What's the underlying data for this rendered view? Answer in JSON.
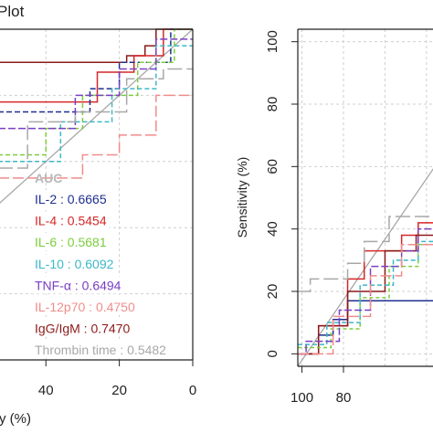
{
  "chart_data": [
    {
      "type": "line",
      "title": "Plot",
      "xlabel": "y (%)",
      "ylabel": "",
      "xlim": [
        0,
        53
      ],
      "x_reversed": true,
      "ylim": [
        0,
        100
      ],
      "xticks": [
        40,
        20,
        0
      ],
      "legend_title": "AUC",
      "legend_entries": [
        {
          "name": "IL-2",
          "auc": "0.6665",
          "color": "#1f2f8f"
        },
        {
          "name": "IL-4",
          "auc": "0.5454",
          "color": "#d62728"
        },
        {
          "name": "IL-6",
          "auc": "0.5681",
          "color": "#7ccd3c"
        },
        {
          "name": "IL-10",
          "auc": "0.6092",
          "color": "#3cb8c8"
        },
        {
          "name": "TNF-α",
          "auc": "0.6494",
          "color": "#7a3fc4"
        },
        {
          "name": "IL-12p70",
          "auc": "0.4750",
          "color": "#f08c8c"
        },
        {
          "name": "IgG/IgM",
          "auc": "0.7470",
          "color": "#8b1a1a"
        },
        {
          "name": "Thrombin time",
          "auc": "0.5482",
          "color": "#a8a8a8"
        }
      ],
      "grid": true,
      "legend_position": "bottom-left",
      "series": [
        {
          "name": "IgG/IgM",
          "color": "#8b1a1a",
          "dash": "",
          "x": [
            53,
            18,
            18,
            13,
            13,
            10,
            10,
            5,
            5,
            0
          ],
          "y": [
            90,
            90,
            92,
            92,
            95,
            95,
            100,
            100,
            100,
            100
          ]
        },
        {
          "name": "IL-4",
          "color": "#d62728",
          "dash": "",
          "x": [
            53,
            26,
            26,
            16,
            16,
            8,
            8,
            0
          ],
          "y": [
            78,
            78,
            87,
            87,
            92,
            92,
            100,
            100
          ]
        },
        {
          "name": "IL-2",
          "color": "#1f2f8f",
          "dash": "6,3",
          "x": [
            53,
            28,
            28,
            20,
            20,
            6,
            6,
            0
          ],
          "y": [
            75,
            75,
            82,
            82,
            90,
            90,
            100,
            100
          ]
        },
        {
          "name": "IL-6",
          "color": "#7ccd3c",
          "dash": "5,3",
          "x": [
            53,
            40,
            40,
            30,
            30,
            15,
            15,
            5,
            5,
            0
          ],
          "y": [
            62,
            62,
            70,
            70,
            80,
            80,
            90,
            90,
            100,
            100
          ]
        },
        {
          "name": "IL-10",
          "color": "#3cb8c8",
          "dash": "5,3",
          "x": [
            53,
            36,
            36,
            22,
            22,
            10,
            10,
            0
          ],
          "y": [
            60,
            60,
            72,
            72,
            82,
            82,
            95,
            95
          ]
        },
        {
          "name": "TNF-α",
          "color": "#7a3fc4",
          "dash": "8,3",
          "x": [
            53,
            32,
            32,
            20,
            20,
            10,
            10,
            0
          ],
          "y": [
            70,
            70,
            80,
            80,
            88,
            88,
            97,
            97
          ]
        },
        {
          "name": "IL-12p70",
          "color": "#f08c8c",
          "dash": "12,4",
          "x": [
            53,
            30,
            30,
            20,
            20,
            10,
            10,
            0
          ],
          "y": [
            55,
            55,
            62,
            62,
            68,
            68,
            80,
            80
          ]
        },
        {
          "name": "Thrombin time",
          "color": "#a8a8a8",
          "dash": "16,5",
          "x": [
            53,
            45,
            45,
            32,
            32,
            18,
            18,
            8,
            8,
            0
          ],
          "y": [
            58,
            58,
            72,
            72,
            75,
            75,
            85,
            85,
            88,
            88
          ]
        }
      ],
      "reference_line": {
        "color": "#a8a8a8",
        "x": [
          53,
          0
        ],
        "y": [
          47,
          100
        ]
      }
    },
    {
      "type": "line",
      "title": "",
      "xlabel": "",
      "ylabel": "Sensitivity (%)",
      "xlim": [
        102,
        36
      ],
      "x_reversed": true,
      "ylim": [
        -4,
        104
      ],
      "xticks": [
        100,
        80
      ],
      "yticks": [
        0,
        20,
        40,
        60,
        80,
        100
      ],
      "grid": true,
      "series": [
        {
          "name": "IL-2",
          "color": "#1f2f8f",
          "dash": "",
          "x": [
            102,
            92,
            92,
            85,
            85,
            78,
            78,
            36
          ],
          "y": [
            0,
            0,
            6,
            6,
            11,
            11,
            17,
            17
          ]
        },
        {
          "name": "IL-4",
          "color": "#d62728",
          "dash": "",
          "x": [
            102,
            92,
            92,
            78,
            78,
            70,
            70,
            62,
            62,
            52,
            52,
            44,
            44,
            36
          ],
          "y": [
            0,
            0,
            9,
            9,
            24,
            24,
            33,
            33,
            33,
            33,
            38,
            38,
            42,
            42
          ]
        },
        {
          "name": "IgG/IgM",
          "color": "#8b1a1a",
          "dash": "",
          "x": [
            102,
            92,
            92,
            78,
            78,
            60,
            60,
            45,
            45,
            36
          ],
          "y": [
            0,
            0,
            9,
            9,
            20,
            20,
            33,
            33,
            38,
            38
          ]
        },
        {
          "name": "IL-6",
          "color": "#7ccd3c",
          "dash": "4,3",
          "x": [
            102,
            86,
            86,
            72,
            72,
            58,
            58,
            44,
            44,
            36
          ],
          "y": [
            2,
            2,
            8,
            8,
            18,
            18,
            28,
            28,
            35,
            35
          ]
        },
        {
          "name": "IL-10",
          "color": "#3cb8c8",
          "dash": "5,3",
          "x": [
            102,
            88,
            88,
            72,
            72,
            56,
            56,
            44,
            44,
            36
          ],
          "y": [
            3,
            3,
            10,
            10,
            22,
            22,
            30,
            30,
            36,
            36
          ]
        },
        {
          "name": "TNF-α",
          "color": "#7a3fc4",
          "dash": "8,3",
          "x": [
            102,
            98,
            98,
            82,
            82,
            67,
            67,
            52,
            52,
            44,
            44,
            36
          ],
          "y": [
            0,
            0,
            4,
            4,
            14,
            14,
            28,
            28,
            33,
            33,
            40,
            40
          ]
        },
        {
          "name": "IL-12p70",
          "color": "#f08c8c",
          "dash": "12,4",
          "x": [
            102,
            85,
            85,
            67,
            67,
            52,
            52,
            36
          ],
          "y": [
            0,
            0,
            12,
            12,
            25,
            25,
            35,
            35
          ]
        },
        {
          "name": "Thrombin time",
          "color": "#a8a8a8",
          "dash": "16,5",
          "x": [
            102,
            96,
            96,
            78,
            78,
            70,
            70,
            58,
            58,
            36
          ],
          "y": [
            20,
            20,
            24,
            24,
            29,
            29,
            36,
            36,
            44,
            44
          ]
        }
      ],
      "reference_line": {
        "color": "#a8a8a8",
        "x": [
          102,
          36
        ],
        "y": [
          -4,
          60
        ]
      }
    }
  ]
}
